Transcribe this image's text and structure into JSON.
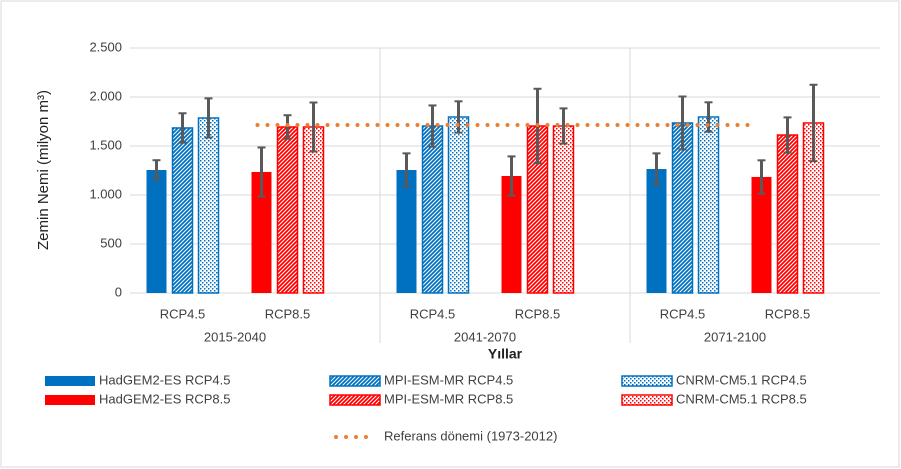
{
  "chart_data": {
    "type": "bar",
    "y_label": "Zemin Nemi (milyon m³)",
    "x_label": "Yıllar",
    "groups": [
      "2015-2040",
      "2041-2070",
      "2071-2100"
    ],
    "categories": [
      "RCP4.5",
      "RCP8.5",
      "RCP4.5",
      "RCP8.5",
      "RCP4.5",
      "RCP8.5"
    ],
    "ylim": [
      0,
      2500
    ],
    "yticks": [
      0,
      500,
      {
        "value": 1000,
        "label": "1.000"
      },
      {
        "value": 1500,
        "label": "1.500"
      },
      {
        "value": 2000,
        "label": "2.000"
      },
      {
        "value": 2500,
        "label": "2.500"
      }
    ],
    "grid": true,
    "series": [
      {
        "name": "HadGEM2-ES RCP4.5",
        "color": "#0070c0",
        "pattern": "solid",
        "values": [
          1255,
          null,
          1255,
          null,
          1265,
          null
        ],
        "errors": [
          100,
          null,
          170,
          null,
          160,
          null
        ]
      },
      {
        "name": "MPI-ESM-MR RCP4.5",
        "color": "#0070c0",
        "pattern": "hatch",
        "values": [
          1684,
          null,
          1704,
          null,
          1735,
          null
        ],
        "errors": [
          150,
          null,
          210,
          null,
          270,
          null
        ]
      },
      {
        "name": "CNRM-CM5.1 RCP4.5",
        "color": "#0070c0",
        "pattern": "dots",
        "values": [
          1786,
          null,
          1796,
          null,
          1796,
          null
        ],
        "errors": [
          200,
          null,
          160,
          null,
          150,
          null
        ]
      },
      {
        "name": "HadGEM2-ES RCP8.5",
        "color": "#ff0000",
        "pattern": "solid",
        "values": [
          null,
          1235,
          null,
          1194,
          null,
          1184
        ],
        "errors": [
          null,
          250,
          null,
          200,
          null,
          170
        ]
      },
      {
        "name": "MPI-ESM-MR RCP8.5",
        "color": "#ff0000",
        "pattern": "hatch",
        "values": [
          null,
          1694,
          null,
          1704,
          null,
          1612
        ],
        "errors": [
          null,
          120,
          null,
          380,
          null,
          180
        ]
      },
      {
        "name": "CNRM-CM5.1 RCP8.5",
        "color": "#ff0000",
        "pattern": "dots",
        "values": [
          null,
          1694,
          null,
          1704,
          null,
          1735
        ],
        "errors": [
          null,
          250,
          null,
          180,
          null,
          390
        ]
      }
    ],
    "reference": {
      "name": "Referans dönemi (1973-2012)",
      "color": "#ed7d31",
      "values": [
        null,
        1714,
        1714,
        1714,
        1714,
        1714
      ]
    }
  }
}
